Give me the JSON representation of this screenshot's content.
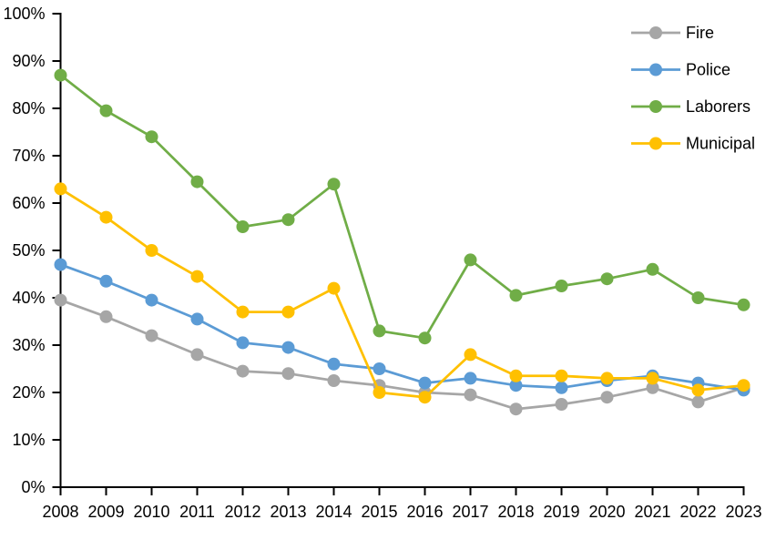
{
  "page": {
    "background_color": "#ffffff",
    "axis_color": "#000000"
  },
  "chart_data": {
    "type": "line",
    "title": "",
    "xlabel": "",
    "ylabel": "",
    "grid": false,
    "categories": [
      "2008",
      "2009",
      "2010",
      "2011",
      "2012",
      "2013",
      "2014",
      "2015",
      "2016",
      "2017",
      "2018",
      "2019",
      "2020",
      "2021",
      "2022",
      "2023"
    ],
    "series": [
      {
        "name": "Fire",
        "color": "#A6A6A6",
        "values": [
          39.5,
          36,
          32,
          28,
          24.5,
          24,
          22.5,
          21.5,
          20,
          19.5,
          16.5,
          17.5,
          19,
          21,
          18,
          21
        ]
      },
      {
        "name": "Police",
        "color": "#5B9BD5",
        "values": [
          47,
          43.5,
          39.5,
          35.5,
          30.5,
          29.5,
          26,
          25,
          22,
          23,
          21.5,
          21,
          22.5,
          23.5,
          22,
          20.5
        ]
      },
      {
        "name": "Laborers",
        "color": "#70AD47",
        "values": [
          87,
          79.5,
          74,
          64.5,
          55,
          56.5,
          64,
          33,
          31.5,
          48,
          40.5,
          42.5,
          44,
          46,
          40,
          38.5
        ]
      },
      {
        "name": "Municipal",
        "color": "#FFC000",
        "values": [
          63,
          57,
          50,
          44.5,
          37,
          37,
          42,
          20,
          19,
          28,
          23.5,
          23.5,
          23,
          23,
          20.5,
          21.5
        ]
      }
    ],
    "y_axis": {
      "min": 0,
      "max": 100,
      "tick_step": 10,
      "tick_labels": [
        "0%",
        "10%",
        "20%",
        "30%",
        "40%",
        "50%",
        "60%",
        "70%",
        "80%",
        "90%",
        "100%"
      ]
    },
    "x_axis": {
      "tick_labels": [
        "2008",
        "2009",
        "2010",
        "2011",
        "2012",
        "2013",
        "2014",
        "2015",
        "2016",
        "2017",
        "2018",
        "2019",
        "2020",
        "2021",
        "2022",
        "2023"
      ]
    },
    "legend": {
      "position": "top-right",
      "entries": [
        "Fire",
        "Police",
        "Laborers",
        "Municipal"
      ]
    }
  }
}
